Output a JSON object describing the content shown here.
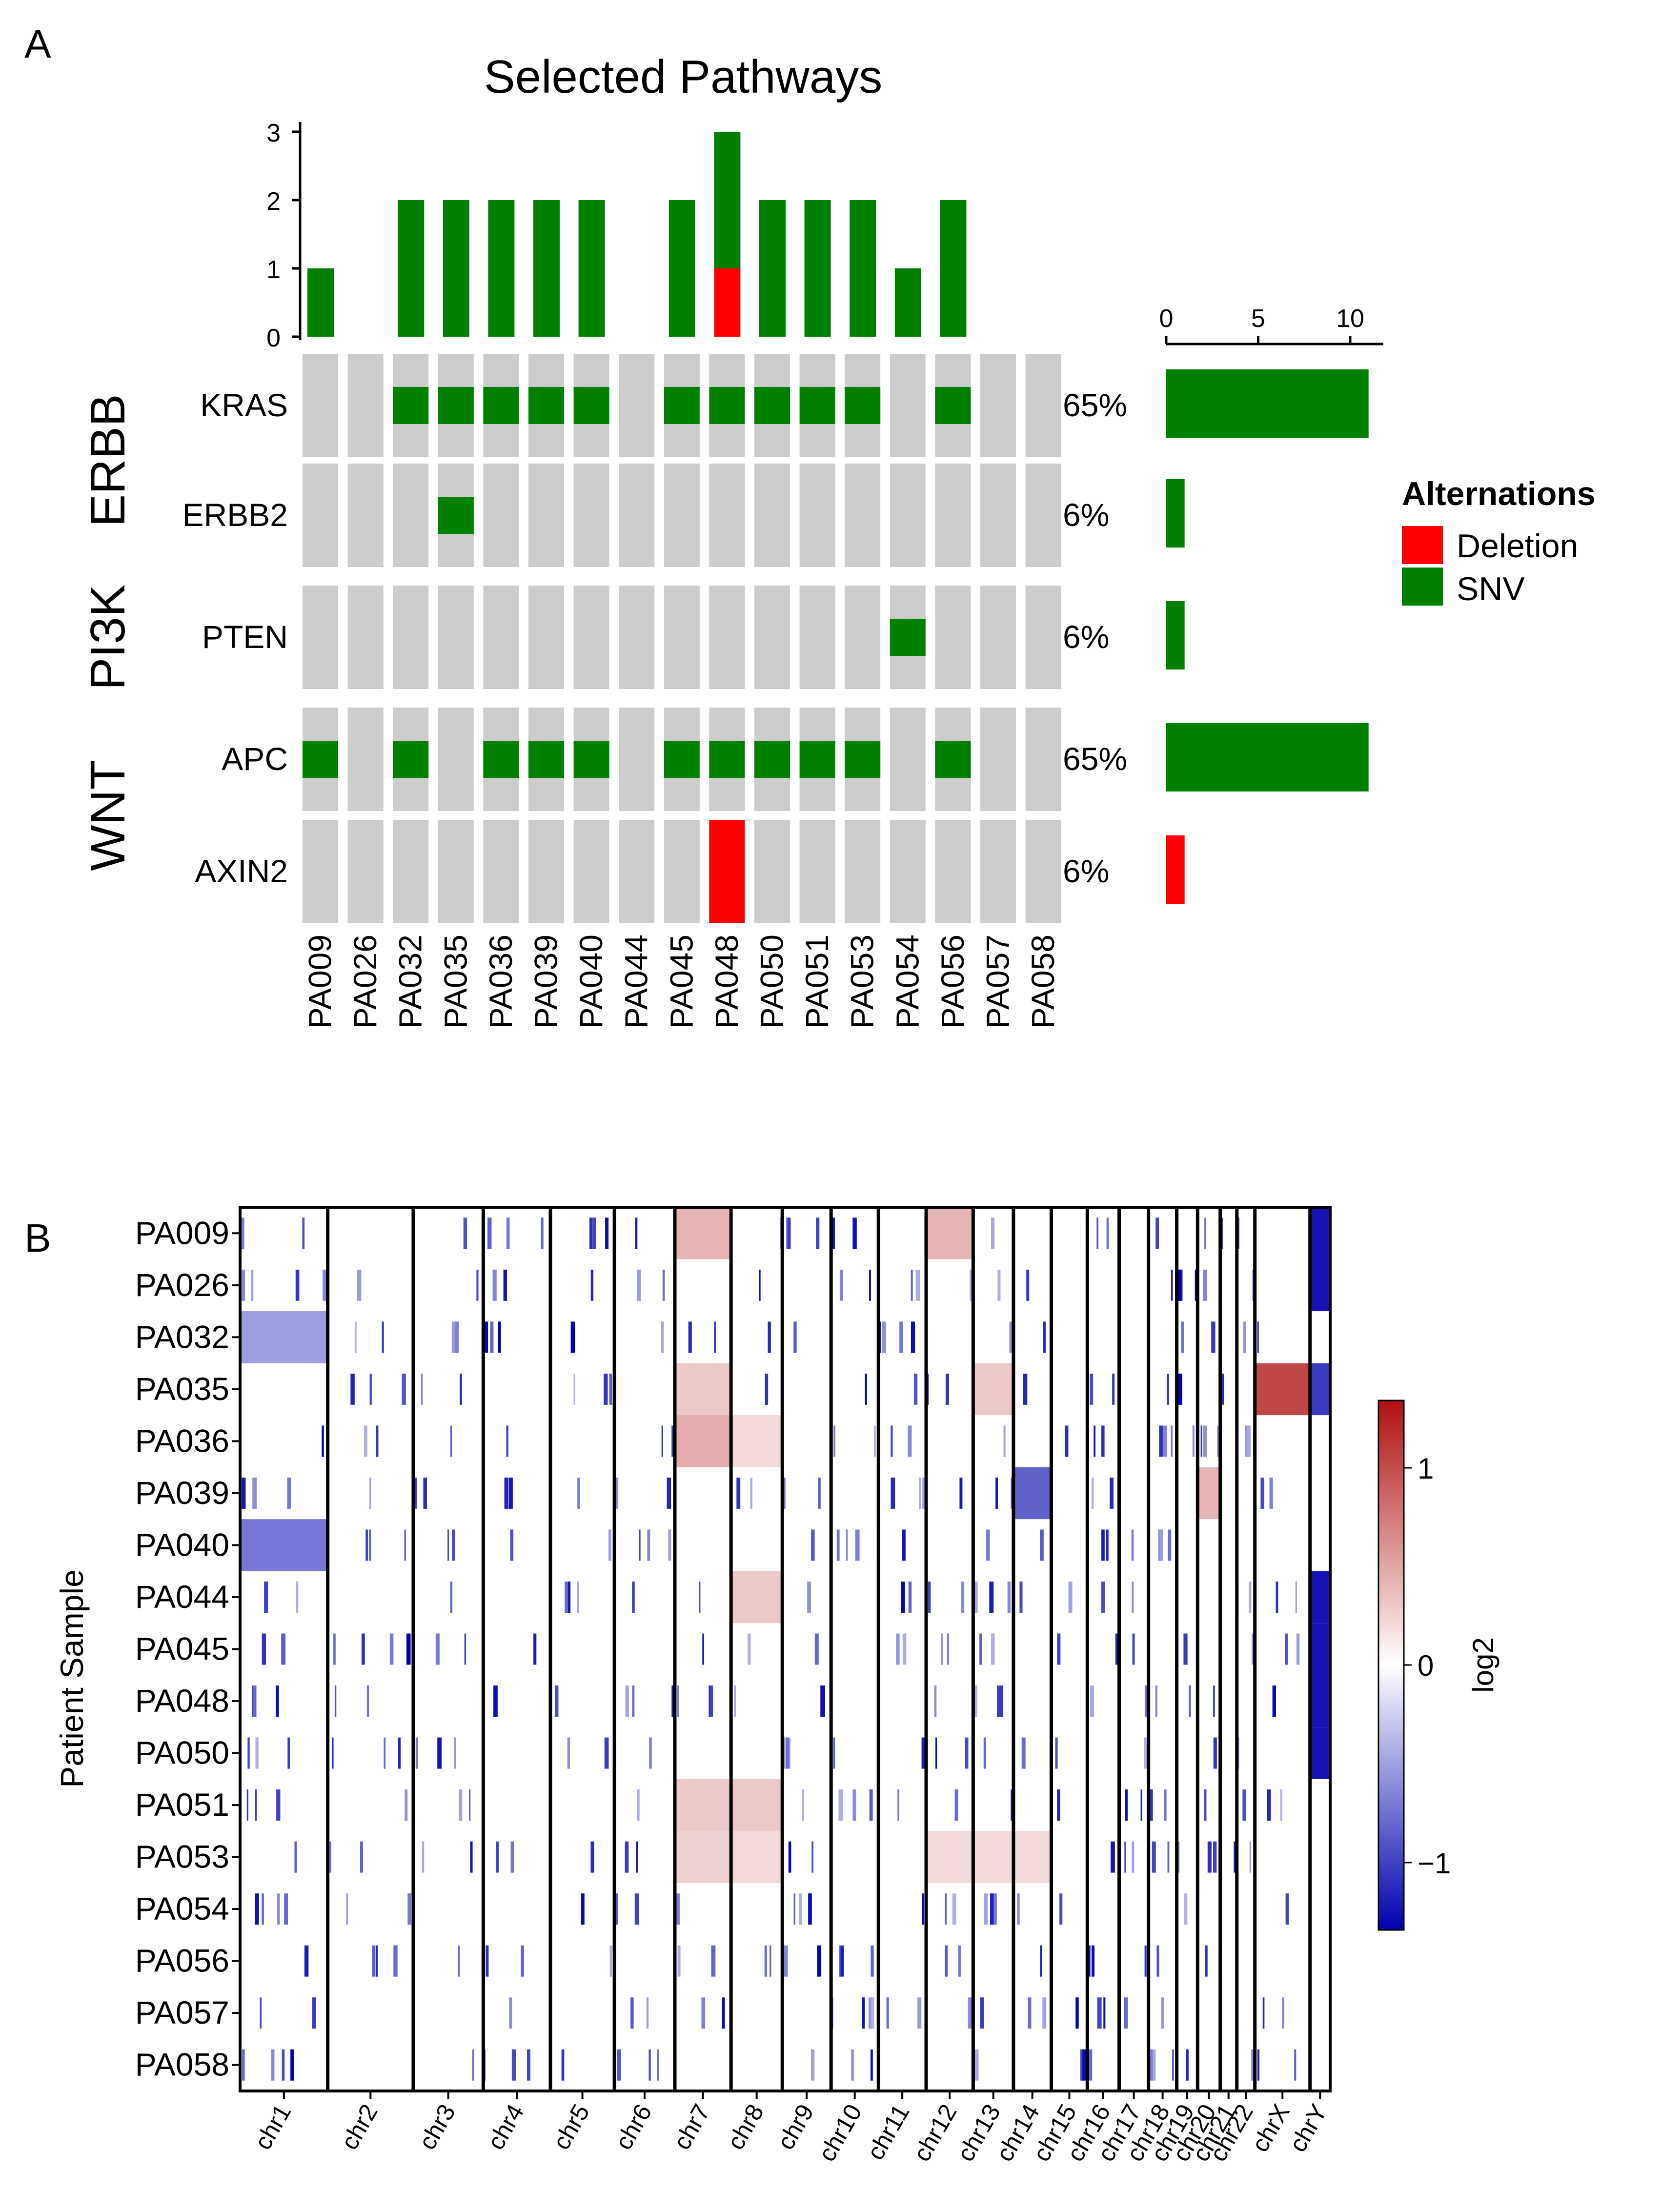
{
  "colors": {
    "snv": "#008000",
    "deletion": "#ff0000",
    "empty_cell": "#cccccc",
    "heat_low": "#0000b0",
    "heat_mid": "#ffffff",
    "heat_high": "#b01010"
  },
  "panel_a": {
    "label": "A",
    "title": "Selected Pathways",
    "samples": [
      "PA009",
      "PA026",
      "PA032",
      "PA035",
      "PA036",
      "PA039",
      "PA040",
      "PA044",
      "PA045",
      "PA048",
      "PA050",
      "PA051",
      "PA053",
      "PA054",
      "PA056",
      "PA057",
      "PA058"
    ],
    "groups": [
      {
        "name": "ERBB",
        "genes": [
          "KRAS",
          "ERBB2"
        ]
      },
      {
        "name": "PI3K",
        "genes": [
          "PTEN"
        ]
      },
      {
        "name": "WNT",
        "genes": [
          "APC",
          "AXIN2"
        ]
      }
    ],
    "genes": [
      {
        "name": "KRAS",
        "pct": "65%",
        "count": 11,
        "color": "snv"
      },
      {
        "name": "ERBB2",
        "pct": "6%",
        "count": 1,
        "color": "snv"
      },
      {
        "name": "PTEN",
        "pct": "6%",
        "count": 1,
        "color": "snv"
      },
      {
        "name": "APC",
        "pct": "65%",
        "count": 11,
        "color": "snv"
      },
      {
        "name": "AXIN2",
        "pct": "6%",
        "count": 1,
        "color": "deletion"
      }
    ],
    "legend": {
      "title": "Alternations",
      "items": [
        {
          "label": "Deletion",
          "color": "deletion"
        },
        {
          "label": "SNV",
          "color": "snv"
        }
      ]
    }
  },
  "panel_b": {
    "label": "B",
    "ylabel": "Patient Sample",
    "colorbar_label": "log2",
    "colorbar_ticks": [
      "1",
      "0",
      "−1"
    ]
  },
  "chart_data": [
    {
      "type": "heatmap",
      "title": "Selected Pathways",
      "description_kind": "oncoprint",
      "samples": [
        "PA009",
        "PA026",
        "PA032",
        "PA035",
        "PA036",
        "PA039",
        "PA040",
        "PA044",
        "PA045",
        "PA048",
        "PA050",
        "PA051",
        "PA053",
        "PA054",
        "PA056",
        "PA057",
        "PA058"
      ],
      "genes": [
        "KRAS",
        "ERBB2",
        "PTEN",
        "APC",
        "AXIN2"
      ],
      "matrix": [
        [
          "",
          "",
          "SNV",
          "SNV",
          "SNV",
          "SNV",
          "SNV",
          "",
          "SNV",
          "SNV",
          "SNV",
          "SNV",
          "SNV",
          "",
          "SNV",
          "",
          ""
        ],
        [
          "",
          "",
          "",
          "SNV",
          "",
          "",
          "",
          "",
          "",
          "",
          "",
          "",
          "",
          "",
          "",
          "",
          ""
        ],
        [
          "",
          "",
          "",
          "",
          "",
          "",
          "",
          "",
          "",
          "",
          "",
          "",
          "",
          "SNV",
          "",
          "",
          ""
        ],
        [
          "SNV",
          "",
          "SNV",
          "",
          "SNV",
          "SNV",
          "SNV",
          "",
          "SNV",
          "SNV",
          "SNV",
          "SNV",
          "SNV",
          "",
          "SNV",
          "",
          ""
        ],
        [
          "",
          "",
          "",
          "",
          "",
          "",
          "",
          "",
          "",
          "Deletion",
          "",
          "",
          "",
          "",
          "",
          "",
          ""
        ]
      ],
      "top_bar": {
        "type": "bar",
        "categories": [
          "PA009",
          "PA026",
          "PA032",
          "PA035",
          "PA036",
          "PA039",
          "PA040",
          "PA044",
          "PA045",
          "PA048",
          "PA050",
          "PA051",
          "PA053",
          "PA054",
          "PA056",
          "PA057",
          "PA058"
        ],
        "series": [
          {
            "name": "SNV",
            "values": [
              1,
              0,
              2,
              2,
              2,
              2,
              2,
              0,
              2,
              2,
              2,
              2,
              2,
              1,
              2,
              0,
              0
            ]
          },
          {
            "name": "Deletion",
            "values": [
              0,
              0,
              0,
              0,
              0,
              0,
              0,
              0,
              0,
              1,
              0,
              0,
              0,
              0,
              0,
              0,
              0
            ]
          }
        ],
        "yticks": [
          "0",
          "1",
          "2",
          "3"
        ],
        "ylim": [
          0,
          3
        ]
      },
      "side_bar": {
        "type": "bar",
        "categories": [
          "KRAS",
          "ERBB2",
          "PTEN",
          "APC",
          "AXIN2"
        ],
        "values": [
          11,
          1,
          1,
          11,
          1
        ],
        "xticks": [
          "0",
          "5",
          "10"
        ],
        "xlim": [
          0,
          11
        ]
      }
    },
    {
      "type": "heatmap",
      "ylabel": "Patient Sample",
      "colorbar": {
        "label": "log2",
        "range": [
          -1.3,
          1.3
        ],
        "ticks": [
          "1",
          "0",
          "−1"
        ]
      },
      "samples": [
        "PA009",
        "PA026",
        "PA032",
        "PA035",
        "PA036",
        "PA039",
        "PA040",
        "PA044",
        "PA045",
        "PA048",
        "PA050",
        "PA051",
        "PA053",
        "PA054",
        "PA056",
        "PA057",
        "PA058"
      ],
      "chromosomes": [
        "chr1",
        "chr2",
        "chr3",
        "chr4",
        "chr5",
        "chr6",
        "chr7",
        "chr8",
        "chr9",
        "chr10",
        "chr11",
        "chr12",
        "chr13",
        "chr14",
        "chr15",
        "chr16",
        "chr17",
        "chr18",
        "chr19",
        "chr20",
        "chr21",
        "chr22",
        "chrX",
        "chrY"
      ],
      "notable_regions": [
        {
          "sample": "PA009",
          "chrom": "chr7",
          "log2": 0.4
        },
        {
          "sample": "PA009",
          "chrom": "chr12",
          "log2": 0.4
        },
        {
          "sample": "PA009",
          "chrom": "chrY",
          "log2": -1.2
        },
        {
          "sample": "PA026",
          "chrom": "chrY",
          "log2": -1.2
        },
        {
          "sample": "PA032",
          "chrom": "chr1",
          "log2": -0.5
        },
        {
          "sample": "PA035",
          "chrom": "chr7",
          "log2": 0.3
        },
        {
          "sample": "PA035",
          "chrom": "chr13",
          "log2": 0.3
        },
        {
          "sample": "PA035",
          "chrom": "chrX",
          "log2": 1.0
        },
        {
          "sample": "PA035",
          "chrom": "chrY",
          "log2": -1.0
        },
        {
          "sample": "PA036",
          "chrom": "chr7",
          "log2": 0.45
        },
        {
          "sample": "PA036",
          "chrom": "chr8",
          "log2": 0.2
        },
        {
          "sample": "PA039",
          "chrom": "chr14",
          "log2": -0.8
        },
        {
          "sample": "PA039",
          "chrom": "chr20",
          "log2": 0.4
        },
        {
          "sample": "PA040",
          "chrom": "chr1",
          "log2": -0.7
        },
        {
          "sample": "PA044",
          "chrom": "chr8",
          "log2": 0.3
        },
        {
          "sample": "PA044",
          "chrom": "chrY",
          "log2": -1.2
        },
        {
          "sample": "PA045",
          "chrom": "chrY",
          "log2": -1.2
        },
        {
          "sample": "PA048",
          "chrom": "chrY",
          "log2": -1.2
        },
        {
          "sample": "PA050",
          "chrom": "chrY",
          "log2": -1.2
        },
        {
          "sample": "PA051",
          "chrom": "chr7",
          "log2": 0.3
        },
        {
          "sample": "PA051",
          "chrom": "chr8",
          "log2": 0.3
        },
        {
          "sample": "PA053",
          "chrom": "chr7",
          "log2": 0.25
        },
        {
          "sample": "PA053",
          "chrom": "chr8",
          "log2": 0.2
        },
        {
          "sample": "PA053",
          "chrom": "chr12",
          "log2": 0.2
        },
        {
          "sample": "PA053",
          "chrom": "chr13",
          "log2": 0.2
        },
        {
          "sample": "PA053",
          "chrom": "chr14",
          "log2": 0.2
        }
      ]
    }
  ]
}
